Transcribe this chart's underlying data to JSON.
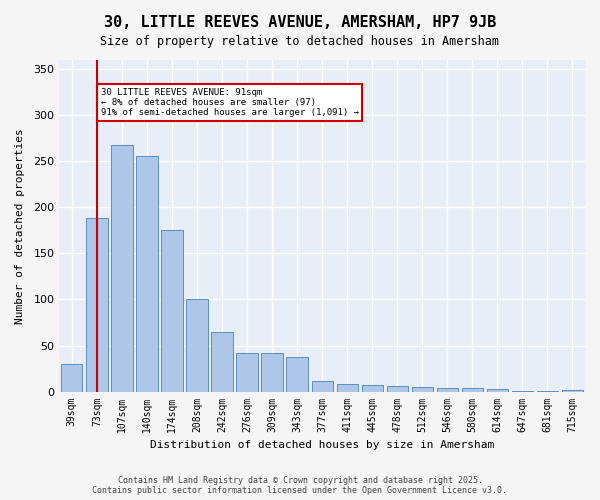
{
  "title": "30, LITTLE REEVES AVENUE, AMERSHAM, HP7 9JB",
  "subtitle": "Size of property relative to detached houses in Amersham",
  "xlabel": "Distribution of detached houses by size in Amersham",
  "ylabel": "Number of detached properties",
  "footer_line1": "Contains HM Land Registry data © Crown copyright and database right 2025.",
  "footer_line2": "Contains public sector information licensed under the Open Government Licence v3.0.",
  "categories": [
    "39sqm",
    "73sqm",
    "107sqm",
    "140sqm",
    "174sqm",
    "208sqm",
    "242sqm",
    "276sqm",
    "309sqm",
    "343sqm",
    "377sqm",
    "411sqm",
    "445sqm",
    "478sqm",
    "512sqm",
    "546sqm",
    "580sqm",
    "614sqm",
    "647sqm",
    "681sqm",
    "715sqm"
  ],
  "bar_heights": [
    30,
    188,
    268,
    256,
    175,
    100,
    65,
    42,
    42,
    38,
    12,
    8,
    7,
    6,
    5,
    4,
    4,
    3,
    1,
    1,
    2
  ],
  "bar_color": "#aec6e8",
  "bar_edge_color": "#5a8fc2",
  "background_color": "#e8eef7",
  "grid_color": "#ffffff",
  "vline_x": 1,
  "vline_color": "#cc0000",
  "annotation_text": "30 LITTLE REEVES AVENUE: 91sqm\n← 8% of detached houses are smaller (97)\n91% of semi-detached houses are larger (1,091) →",
  "annotation_box_color": "#cc0000",
  "ylim": [
    0,
    360
  ],
  "yticks": [
    0,
    50,
    100,
    150,
    200,
    250,
    300,
    350
  ]
}
